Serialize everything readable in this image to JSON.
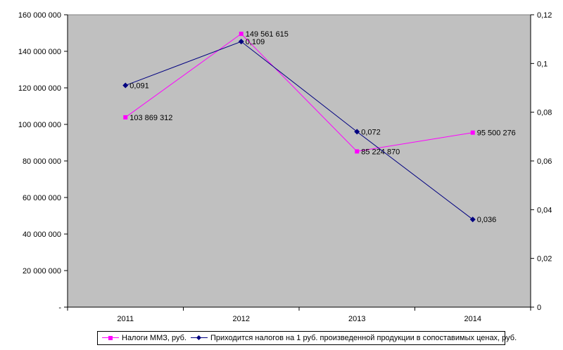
{
  "chart_data": {
    "type": "line",
    "title": "",
    "categories": [
      "2011",
      "2012",
      "2013",
      "2014"
    ],
    "series": [
      {
        "name": "Налоги ММЗ, руб.",
        "axis": "left",
        "values": [
          103869312,
          149561615,
          85224870,
          95500276
        ],
        "labels": [
          "103 869 312",
          "149 561 615",
          "85 224 870",
          "95 500 276"
        ],
        "color": "#ff00ff",
        "marker": "square"
      },
      {
        "name": "Приходится налогов на 1 руб. произведенной продукции в сопоставимых ценах, руб.",
        "axis": "right",
        "values": [
          0.091,
          0.109,
          0.072,
          0.036
        ],
        "labels": [
          "0,091",
          "0,109",
          "0,072",
          "0,036"
        ],
        "color": "#000080",
        "marker": "diamond"
      }
    ],
    "y_left": {
      "min": 0,
      "max": 160000000,
      "ticks": [
        "-",
        "20 000 000",
        "40 000 000",
        "60 000 000",
        "80 000 000",
        "100 000 000",
        "120 000 000",
        "140 000 000",
        "160 000 000"
      ]
    },
    "y_right": {
      "min": 0,
      "max": 0.12,
      "ticks": [
        "0",
        "0,02",
        "0,04",
        "0,06",
        "0,08",
        "0,1",
        "0,12"
      ]
    },
    "plot_background": "#c0c0c0",
    "grid": false,
    "legend_position": "bottom"
  }
}
